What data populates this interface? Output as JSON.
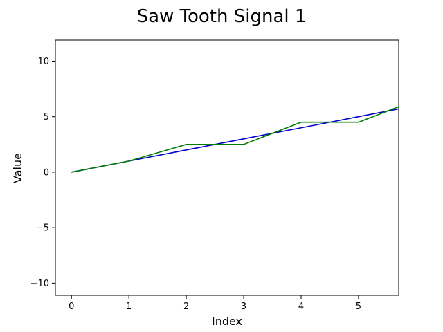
{
  "chart_data": {
    "type": "line",
    "title": "Saw Tooth Signal 1",
    "xlabel": "Index",
    "ylabel": "Value",
    "xlim": [
      -0.28,
      5.7
    ],
    "ylim": [
      -11.1,
      11.9
    ],
    "xticks": [
      0,
      1,
      2,
      3,
      4,
      5
    ],
    "yticks": [
      -10,
      -5,
      0,
      5,
      10
    ],
    "ytick_labels": [
      "−10",
      "−5",
      "0",
      "5",
      "10"
    ],
    "grid": false,
    "series": [
      {
        "color": "#0000cc",
        "x": [
          0,
          1,
          2,
          3,
          4,
          5,
          6
        ],
        "values": [
          0,
          1,
          2,
          3,
          4,
          5,
          6
        ]
      },
      {
        "color": "#007a00",
        "x": [
          0,
          1,
          2,
          3,
          4,
          5,
          6
        ],
        "values": [
          0,
          1,
          2.5,
          2.5,
          4.5,
          4.5,
          6.5
        ]
      }
    ]
  }
}
